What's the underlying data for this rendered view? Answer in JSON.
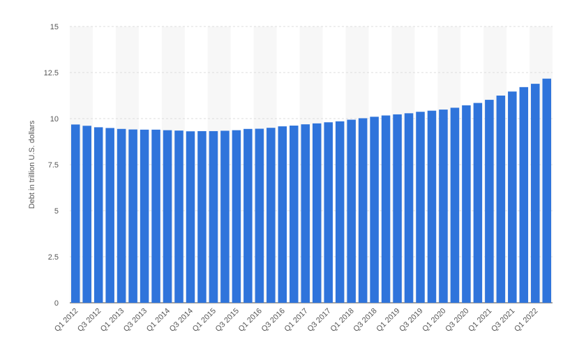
{
  "chart_data": {
    "type": "bar",
    "y_label": "Debt in trillion U.S. dollars",
    "categories": [
      "Q1 2012",
      null,
      "Q3 2012",
      null,
      "Q1 2013",
      null,
      "Q3 2013",
      null,
      "Q1 2014",
      null,
      "Q3 2014",
      null,
      "Q1 2015",
      null,
      "Q3 2015",
      null,
      "Q1 2016",
      null,
      "Q3 2016",
      null,
      "Q1 2017",
      null,
      "Q3 2017",
      null,
      "Q1 2018",
      null,
      "Q3 2018",
      null,
      "Q1 2019",
      null,
      "Q3 2019",
      null,
      "Q1 2020",
      null,
      "Q3 2020",
      null,
      "Q1 2021",
      null,
      "Q3 2021",
      null,
      "Q1 2022",
      null
    ],
    "values": [
      9.68,
      9.61,
      9.53,
      9.49,
      9.44,
      9.41,
      9.4,
      9.4,
      9.37,
      9.35,
      9.31,
      9.32,
      9.32,
      9.34,
      9.37,
      9.44,
      9.45,
      9.5,
      9.58,
      9.62,
      9.69,
      9.74,
      9.8,
      9.85,
      9.94,
      10.02,
      10.1,
      10.17,
      10.23,
      10.29,
      10.37,
      10.43,
      10.49,
      10.59,
      10.72,
      10.85,
      11.02,
      11.25,
      11.47,
      11.71,
      11.89,
      12.17
    ],
    "color": "#2f74db",
    "ylim": [
      0,
      15
    ],
    "yticks": [
      0,
      2.5,
      5,
      7.5,
      10,
      12.5,
      15
    ],
    "grid": true
  }
}
